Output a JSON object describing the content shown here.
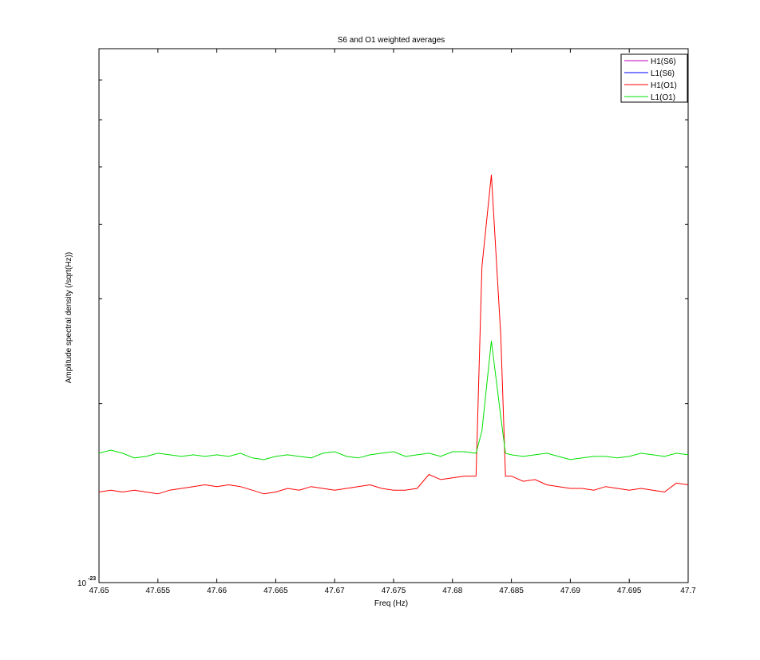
{
  "chart_data": {
    "type": "line",
    "title": "S6 and O1 weighted averages",
    "xlabel": "Freq (Hz)",
    "ylabel": "Amplitude spectral density (/sqrt(Hz))",
    "xlim": [
      47.65,
      47.7
    ],
    "ylim": [
      1e-23,
      7.9e-23
    ],
    "yscale": "log",
    "x_ticks": [
      47.65,
      47.655,
      47.66,
      47.665,
      47.67,
      47.675,
      47.68,
      47.685,
      47.69,
      47.695,
      47.7
    ],
    "x_tick_labels": [
      "47.65",
      "47.655",
      "47.66",
      "47.665",
      "47.67",
      "47.675",
      "47.68",
      "47.685",
      "47.69",
      "47.695",
      "47.7"
    ],
    "y_tick_label": {
      "base": "10",
      "exponent": "-23"
    },
    "grid": false,
    "legend_position": "top-right",
    "series": [
      {
        "name": "H1(S6)",
        "color": "#bf00bf",
        "x": [],
        "y": []
      },
      {
        "name": "L1(S6)",
        "color": "#0000ff",
        "x": [],
        "y": []
      },
      {
        "name": "H1(O1)",
        "color": "#ff0000",
        "x": [
          47.65,
          47.651,
          47.652,
          47.653,
          47.654,
          47.655,
          47.656,
          47.657,
          47.658,
          47.659,
          47.66,
          47.661,
          47.662,
          47.663,
          47.664,
          47.665,
          47.666,
          47.667,
          47.668,
          47.669,
          47.67,
          47.671,
          47.672,
          47.673,
          47.674,
          47.675,
          47.676,
          47.677,
          47.678,
          47.679,
          47.68,
          47.681,
          47.682,
          47.6825,
          47.6833,
          47.6841,
          47.6845,
          47.685,
          47.686,
          47.687,
          47.688,
          47.689,
          47.69,
          47.691,
          47.692,
          47.693,
          47.694,
          47.695,
          47.696,
          47.697,
          47.698,
          47.699,
          47.7
        ],
        "y": [
          1.42e-23,
          1.43e-23,
          1.42e-23,
          1.43e-23,
          1.42e-23,
          1.41e-23,
          1.43e-23,
          1.44e-23,
          1.45e-23,
          1.46e-23,
          1.45e-23,
          1.46e-23,
          1.45e-23,
          1.43e-23,
          1.41e-23,
          1.42e-23,
          1.44e-23,
          1.43e-23,
          1.45e-23,
          1.44e-23,
          1.43e-23,
          1.44e-23,
          1.45e-23,
          1.46e-23,
          1.44e-23,
          1.43e-23,
          1.43e-23,
          1.44e-23,
          1.52e-23,
          1.49e-23,
          1.5e-23,
          1.51e-23,
          1.51e-23,
          3.4e-23,
          4.85e-23,
          2.6e-23,
          1.51e-23,
          1.51e-23,
          1.48e-23,
          1.49e-23,
          1.46e-23,
          1.45e-23,
          1.44e-23,
          1.44e-23,
          1.43e-23,
          1.45e-23,
          1.44e-23,
          1.43e-23,
          1.44e-23,
          1.43e-23,
          1.42e-23,
          1.47e-23,
          1.46e-23
        ]
      },
      {
        "name": "L1(O1)",
        "color": "#00e000",
        "x": [
          47.65,
          47.651,
          47.652,
          47.653,
          47.654,
          47.655,
          47.656,
          47.657,
          47.658,
          47.659,
          47.66,
          47.661,
          47.662,
          47.663,
          47.664,
          47.665,
          47.666,
          47.667,
          47.668,
          47.669,
          47.67,
          47.671,
          47.672,
          47.673,
          47.674,
          47.675,
          47.676,
          47.677,
          47.678,
          47.679,
          47.68,
          47.681,
          47.682,
          47.6825,
          47.6833,
          47.6841,
          47.6845,
          47.685,
          47.686,
          47.687,
          47.688,
          47.689,
          47.69,
          47.691,
          47.692,
          47.693,
          47.694,
          47.695,
          47.696,
          47.697,
          47.698,
          47.699,
          47.7
        ],
        "y": [
          1.65e-23,
          1.67e-23,
          1.65e-23,
          1.62e-23,
          1.63e-23,
          1.65e-23,
          1.64e-23,
          1.63e-23,
          1.64e-23,
          1.63e-23,
          1.64e-23,
          1.63e-23,
          1.65e-23,
          1.62e-23,
          1.61e-23,
          1.63e-23,
          1.64e-23,
          1.63e-23,
          1.62e-23,
          1.65e-23,
          1.66e-23,
          1.63e-23,
          1.62e-23,
          1.64e-23,
          1.65e-23,
          1.66e-23,
          1.63e-23,
          1.64e-23,
          1.65e-23,
          1.63e-23,
          1.66e-23,
          1.66e-23,
          1.65e-23,
          1.8e-23,
          2.55e-23,
          1.9e-23,
          1.65e-23,
          1.64e-23,
          1.63e-23,
          1.64e-23,
          1.65e-23,
          1.63e-23,
          1.61e-23,
          1.62e-23,
          1.63e-23,
          1.63e-23,
          1.62e-23,
          1.63e-23,
          1.65e-23,
          1.64e-23,
          1.63e-23,
          1.65e-23,
          1.64e-23
        ]
      }
    ]
  }
}
